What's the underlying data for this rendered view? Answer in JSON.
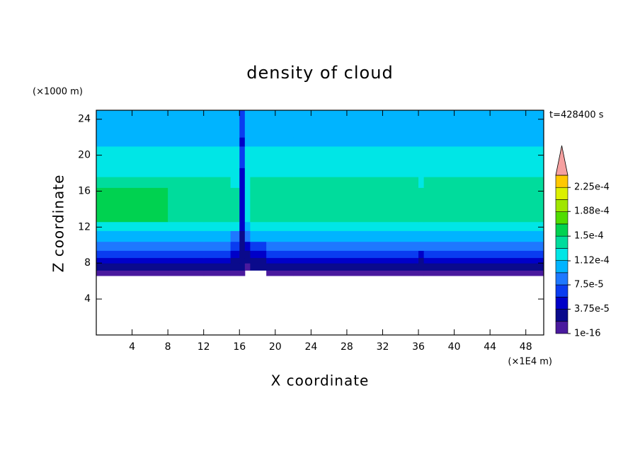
{
  "chart_data": {
    "type": "contour",
    "title": "density of cloud",
    "xlabel": "X coordinate",
    "ylabel": "Z coordinate",
    "xunit": "(×1E4 m)",
    "yunit": "(×1000 m)",
    "annotation": "t=428400 s",
    "xlim": [
      0,
      50
    ],
    "ylim": [
      0,
      25
    ],
    "xticks": [
      4,
      8,
      12,
      16,
      20,
      24,
      28,
      32,
      36,
      40,
      44,
      48
    ],
    "yticks": [
      4,
      8,
      12,
      16,
      20,
      24
    ],
    "x_edges": [
      0,
      8,
      12,
      15,
      16,
      16.6,
      17.2,
      19,
      22,
      36,
      36.6,
      50
    ],
    "y_edges": [
      6.6,
      7.2,
      8,
      8.6,
      9.4,
      10.4,
      11.6,
      12.6,
      16.4,
      17.6,
      18.6,
      20,
      21,
      22,
      25
    ],
    "z": [
      [
        1e-05,
        1e-05,
        1e-05,
        1e-05,
        1e-05,
        null,
        null,
        1e-05,
        1e-05,
        1e-05,
        1e-05
      ],
      [
        3e-05,
        3e-05,
        3e-05,
        2e-05,
        2e-05,
        1e-05,
        2e-05,
        3e-05,
        3e-05,
        2e-05,
        3e-05
      ],
      [
        5e-05,
        5e-05,
        5e-05,
        3e-05,
        2e-05,
        2e-05,
        3e-05,
        4e-05,
        5e-05,
        3e-05,
        5e-05
      ],
      [
        7e-05,
        7e-05,
        7e-05,
        4e-05,
        2e-05,
        2e-05,
        4e-05,
        6e-05,
        7e-05,
        5e-05,
        7e-05
      ],
      [
        9e-05,
        9e-05,
        9e-05,
        6e-05,
        3e-05,
        5e-05,
        7e-05,
        8e-05,
        9e-05,
        8e-05,
        9e-05
      ],
      [
        0.00011,
        0.00011,
        0.00011,
        9e-05,
        3e-05,
        8e-05,
        0.0001,
        0.000105,
        0.00011,
        0.000105,
        0.00011
      ],
      [
        0.000125,
        0.00013,
        0.000125,
        0.000115,
        4e-05,
        0.0001,
        0.00012,
        0.00012,
        0.000125,
        0.00012,
        0.000125
      ],
      [
        0.00015,
        0.000145,
        0.00014,
        0.000135,
        5e-05,
        0.00012,
        0.000135,
        0.00014,
        0.000145,
        0.000135,
        0.000145
      ],
      [
        0.000135,
        0.000135,
        0.000135,
        0.00013,
        4e-05,
        0.00013,
        0.000135,
        0.000135,
        0.000135,
        0.00013,
        0.000135
      ],
      [
        0.000125,
        0.000125,
        0.000125,
        0.000125,
        5e-05,
        0.000125,
        0.000125,
        0.000125,
        0.000125,
        0.000125,
        0.000125
      ],
      [
        0.000115,
        0.000115,
        0.000115,
        0.000115,
        6e-05,
        0.000115,
        0.000115,
        0.000115,
        0.000115,
        0.000115,
        0.000115
      ],
      [
        0.00012,
        0.00012,
        0.00012,
        0.00012,
        6e-05,
        0.00012,
        0.00012,
        0.00012,
        0.00012,
        0.00012,
        0.00012
      ],
      [
        0.000105,
        0.000105,
        0.000105,
        0.000105,
        5e-05,
        0.000105,
        0.000105,
        0.000105,
        0.000105,
        0.000105,
        0.000105
      ],
      [
        9.5e-05,
        9.5e-05,
        9.5e-05,
        9.5e-05,
        7e-05,
        9.5e-05,
        9.5e-05,
        9.5e-05,
        9.5e-05,
        9.5e-05,
        9.5e-05
      ]
    ],
    "levels": [
      0,
      1.875e-05,
      3.75e-05,
      5.625e-05,
      7.5e-05,
      9.375e-05,
      0.0001125,
      0.00013125,
      0.00015,
      0.00016875,
      0.0001875,
      0.00020625,
      0.000225,
      0.00024375
    ],
    "colors": [
      "#4a1a9e",
      "#0a0a8c",
      "#0000c8",
      "#0a3cf0",
      "#1e78ff",
      "#00b4ff",
      "#00e6e6",
      "#00dc9c",
      "#00d250",
      "#50dc00",
      "#a0e600",
      "#dcf000",
      "#ffc800",
      "#ff8c00",
      "#ff3c00"
    ],
    "extend_color": "#f5a0a0",
    "colorbar_ticks": [
      {
        "value": 1e-16,
        "label": "1e-16"
      },
      {
        "value": 3.75e-05,
        "label": "3.75e-5"
      },
      {
        "value": 7.5e-05,
        "label": "7.5e-5"
      },
      {
        "value": 0.000112,
        "label": "1.12e-4"
      },
      {
        "value": 0.00015,
        "label": "1.5e-4"
      },
      {
        "value": 0.000188,
        "label": "1.88e-4"
      },
      {
        "value": 0.000225,
        "label": "2.25e-4"
      }
    ]
  }
}
